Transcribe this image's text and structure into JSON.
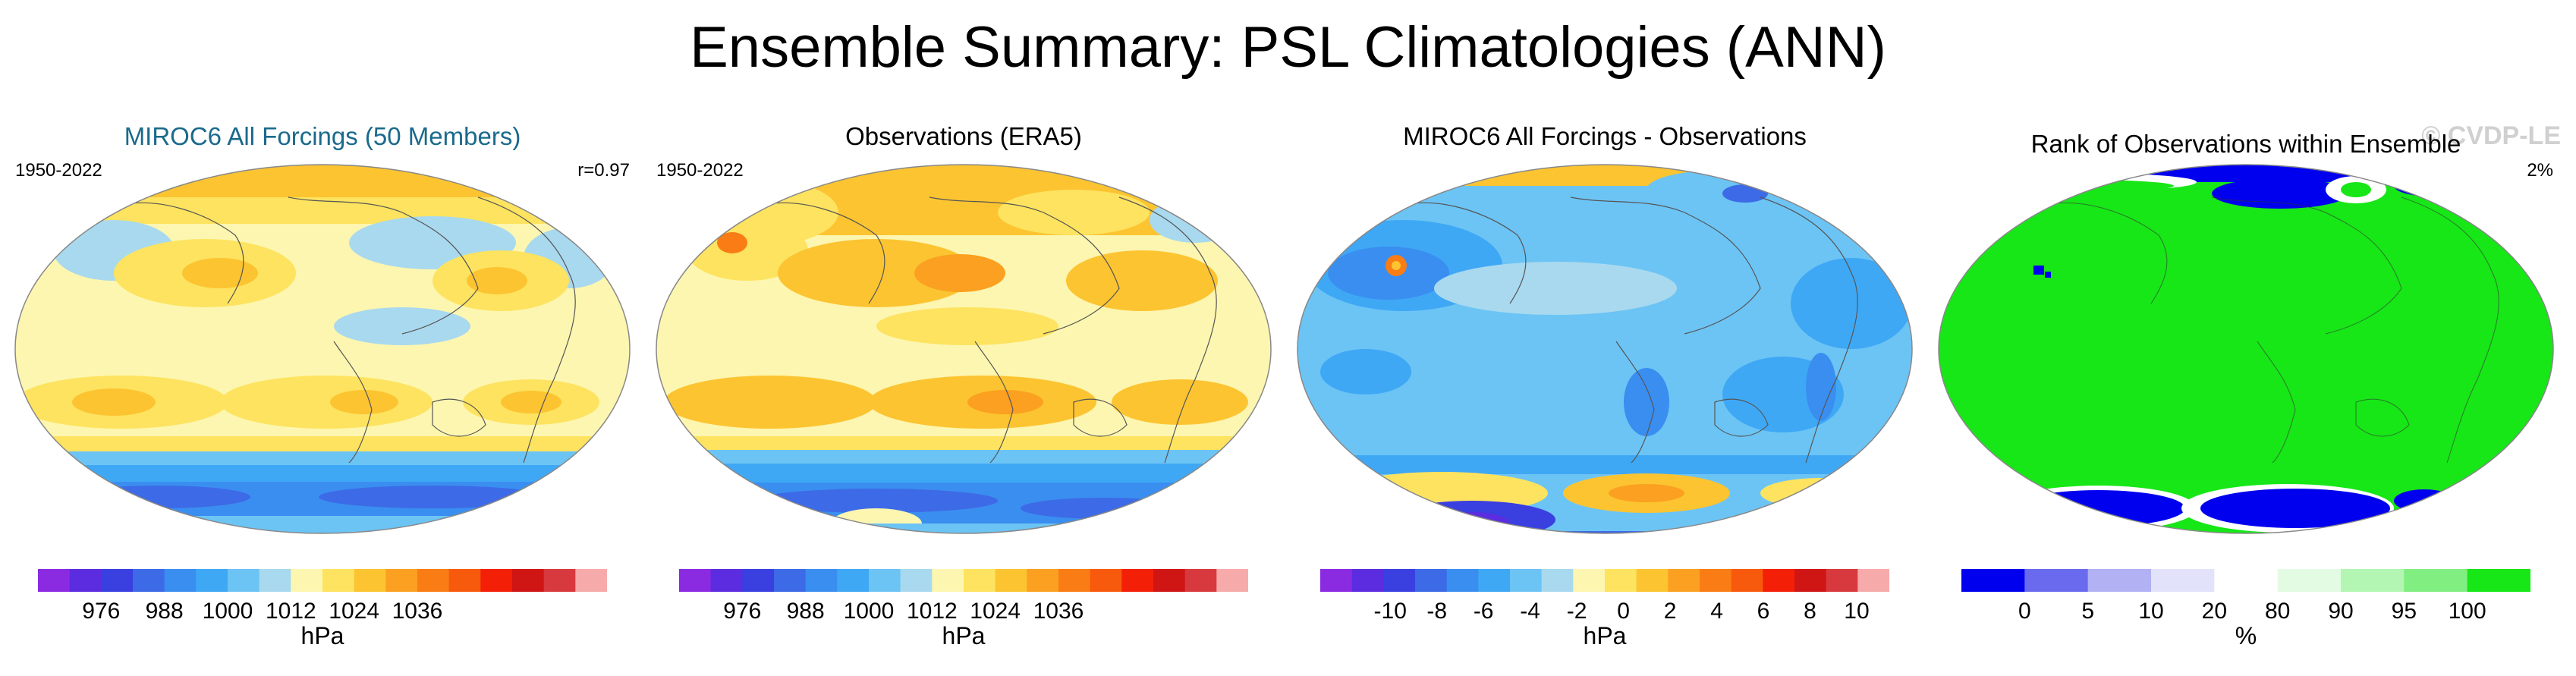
{
  "title": "Ensemble Summary: PSL Climatologies (ANN)",
  "panels": [
    {
      "title": "MIROC6 All Forcings (50 Members)",
      "left_text": "1950-2022",
      "right_text": "r=0.97",
      "colorbar": {
        "colors": [
          "#8a2be2",
          "#5b2ce0",
          "#3a3fe0",
          "#3d6ae6",
          "#3a8ef0",
          "#3fa8f5",
          "#6cc4f5",
          "#a9d9ee",
          "#fdf6b0",
          "#fde35f",
          "#fcc431",
          "#fba020",
          "#f97d14",
          "#f75a0c",
          "#f41f07",
          "#d01515",
          "#d8393e",
          "#f7aaaa"
        ],
        "ticks": [
          "976",
          "988",
          "1000",
          "1012",
          "1024",
          "1036"
        ],
        "units": "hPa"
      }
    },
    {
      "title": "Observations (ERA5)",
      "left_text": "1950-2022",
      "right_text": "",
      "colorbar": {
        "colors": [
          "#8a2be2",
          "#5b2ce0",
          "#3a3fe0",
          "#3d6ae6",
          "#3a8ef0",
          "#3fa8f5",
          "#6cc4f5",
          "#a9d9ee",
          "#fdf6b0",
          "#fde35f",
          "#fcc431",
          "#fba020",
          "#f97d14",
          "#f75a0c",
          "#f41f07",
          "#d01515",
          "#d8393e",
          "#f7aaaa"
        ],
        "ticks": [
          "976",
          "988",
          "1000",
          "1012",
          "1024",
          "1036"
        ],
        "units": "hPa"
      }
    },
    {
      "title": "MIROC6 All Forcings - Observations",
      "left_text": "",
      "right_text": "",
      "colorbar": {
        "colors": [
          "#8a2be2",
          "#5b2ce0",
          "#3a3fe0",
          "#3d6ae6",
          "#3a8ef0",
          "#3fa8f5",
          "#6cc4f5",
          "#a9d9ee",
          "#fdf6b0",
          "#fde35f",
          "#fcc431",
          "#fba020",
          "#f97d14",
          "#f75a0c",
          "#f41f07",
          "#d01515",
          "#d8393e",
          "#f7aaaa"
        ],
        "ticks": [
          "-10",
          "-8",
          "-6",
          "-4",
          "-2",
          "0",
          "2",
          "4",
          "6",
          "8",
          "10"
        ],
        "units": "hPa"
      }
    },
    {
      "title": "Rank of Observations within Ensemble",
      "left_text": "",
      "right_text": "2%",
      "watermark": "© CVDP-LE",
      "colorbar": {
        "colors": [
          "#0000ee",
          "#6a6aee",
          "#b1b1f3",
          "#e2e2fb",
          "#ffffff",
          "#e3fbe3",
          "#b3f5b3",
          "#80ee80",
          "#17e617"
        ],
        "ticks": [
          "0",
          "5",
          "10",
          "20",
          "80",
          "90",
          "95",
          "100"
        ],
        "units": "%"
      }
    }
  ]
}
